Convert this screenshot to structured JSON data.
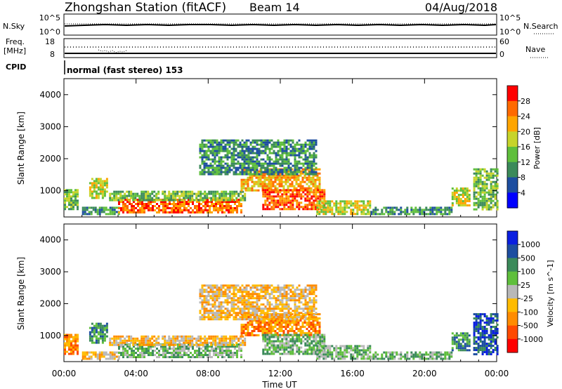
{
  "header": {
    "station": "Zhongshan Station (fitACF)",
    "beam": "Beam 14",
    "date": "04/Aug/2018"
  },
  "top_panels": {
    "nsky": {
      "label": "N.Sky",
      "ticks": [
        "10^5",
        "10^0"
      ],
      "right_label": "N.Search",
      "right_ticks": [
        "10^5",
        "10^0"
      ]
    },
    "freq": {
      "label_line1": "Freq.",
      "label_line2": "[MHz]",
      "ticks": [
        "18",
        "8"
      ],
      "right_label": "Nave",
      "right_ticks": [
        "60",
        "0"
      ]
    },
    "cpid": {
      "label": "CPID",
      "value": "normal (fast stereo) 153"
    }
  },
  "colors": {
    "power_scale": [
      "#0000ff",
      "#1d4ea0",
      "#3b8a5a",
      "#5fbf3c",
      "#c7d42a",
      "#ffa500",
      "#ff6a00",
      "#ff0000"
    ],
    "velocity_scale": [
      "#ff0000",
      "#ff4a00",
      "#ff8c00",
      "#ffbb00",
      "#b8b8b8",
      "#5fbf3c",
      "#3b8a5a",
      "#1d4ea0",
      "#0a1fe0"
    ]
  },
  "chart_data": [
    {
      "type": "heatmap",
      "title": "",
      "xlabel": "Time UT",
      "ylabel": "Slant Range [km]",
      "xlim": [
        0,
        24
      ],
      "ylim": [
        180,
        4500
      ],
      "x_ticks": [
        "00:00",
        "04:00",
        "08:00",
        "12:00",
        "16:00",
        "20:00",
        "00:00"
      ],
      "y_ticks": [
        "1000",
        "2000",
        "3000",
        "4000"
      ],
      "colorbar": {
        "label": "Power [dB]",
        "ticks": [
          "4",
          "8",
          "12",
          "16",
          "20",
          "24",
          "28"
        ],
        "range": [
          0,
          30
        ]
      },
      "echo_regions": [
        {
          "t0": 0.0,
          "t1": 0.8,
          "r0": 450,
          "r1": 1050,
          "level": 3
        },
        {
          "t0": 1.4,
          "t1": 2.4,
          "r0": 800,
          "r1": 1400,
          "level": 4
        },
        {
          "t0": 1.0,
          "t1": 3.0,
          "r0": 300,
          "r1": 500,
          "level": 2
        },
        {
          "t0": 3.0,
          "t1": 9.8,
          "r0": 350,
          "r1": 750,
          "level": 6
        },
        {
          "t0": 2.5,
          "t1": 10.0,
          "r0": 700,
          "r1": 1000,
          "level": 3
        },
        {
          "t0": 9.8,
          "t1": 14.2,
          "r0": 1000,
          "r1": 1700,
          "level": 5
        },
        {
          "t0": 11.0,
          "t1": 14.5,
          "r0": 400,
          "r1": 1050,
          "level": 6
        },
        {
          "t0": 14.0,
          "t1": 17.0,
          "r0": 250,
          "r1": 700,
          "level": 4
        },
        {
          "t0": 17.0,
          "t1": 21.5,
          "r0": 280,
          "r1": 500,
          "level": 2
        },
        {
          "t0": 21.5,
          "t1": 22.5,
          "r0": 550,
          "r1": 1100,
          "level": 4
        },
        {
          "t0": 22.7,
          "t1": 24.0,
          "r0": 400,
          "r1": 1700,
          "level": 3
        },
        {
          "t0": 7.5,
          "t1": 14.0,
          "r0": 1500,
          "r1": 2600,
          "level": 2
        }
      ]
    },
    {
      "type": "heatmap",
      "title": "",
      "xlabel": "Time UT",
      "ylabel": "Slant Range [km]",
      "xlim": [
        0,
        24
      ],
      "ylim": [
        180,
        4500
      ],
      "x_ticks": [
        "00:00",
        "04:00",
        "08:00",
        "12:00",
        "16:00",
        "20:00",
        "00:00"
      ],
      "y_ticks": [
        "1000",
        "2000",
        "3000",
        "4000"
      ],
      "colorbar": {
        "label": "Velocity [m s^-1]",
        "ticks": [
          "1000",
          "500",
          "100",
          "25",
          "-25",
          "-100",
          "-500",
          "-1000"
        ],
        "range": [
          -1200,
          1200
        ]
      },
      "echo_regions": [
        {
          "t0": 0.0,
          "t1": 0.8,
          "r0": 450,
          "r1": 1050,
          "level": -2
        },
        {
          "t0": 1.4,
          "t1": 2.4,
          "r0": 800,
          "r1": 1400,
          "level": 2
        },
        {
          "t0": 1.0,
          "t1": 3.0,
          "r0": 300,
          "r1": 500,
          "level": -1
        },
        {
          "t0": 3.0,
          "t1": 9.8,
          "r0": 350,
          "r1": 750,
          "level": 1
        },
        {
          "t0": 2.5,
          "t1": 10.0,
          "r0": 700,
          "r1": 1000,
          "level": -1
        },
        {
          "t0": 9.8,
          "t1": 14.2,
          "r0": 1000,
          "r1": 1700,
          "level": -2
        },
        {
          "t0": 11.0,
          "t1": 14.5,
          "r0": 400,
          "r1": 1050,
          "level": 1
        },
        {
          "t0": 14.0,
          "t1": 17.0,
          "r0": 250,
          "r1": 700,
          "level": 1
        },
        {
          "t0": 17.0,
          "t1": 21.5,
          "r0": 280,
          "r1": 500,
          "level": 1
        },
        {
          "t0": 21.5,
          "t1": 22.5,
          "r0": 550,
          "r1": 1100,
          "level": 2
        },
        {
          "t0": 22.7,
          "t1": 24.0,
          "r0": 400,
          "r1": 1700,
          "level": 3
        },
        {
          "t0": 7.5,
          "t1": 14.0,
          "r0": 1500,
          "r1": 2600,
          "level": -1
        }
      ]
    }
  ]
}
